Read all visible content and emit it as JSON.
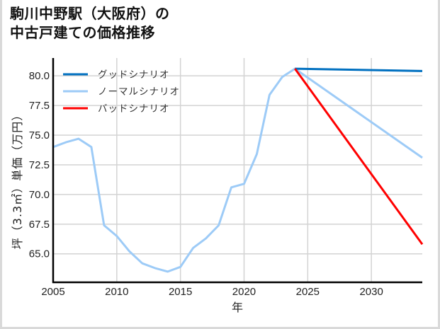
{
  "title": "駒川中野駅（大阪府）の\n中古戸建ての価格推移",
  "colors": {
    "good": "#0070c0",
    "normal": "#9dcbf7",
    "bad": "#ff0000",
    "grid": "#d3d3d3",
    "axis": "#000000",
    "frame": "#d9d9d9"
  },
  "chart_data": {
    "type": "line",
    "title": "駒川中野駅（大阪府）の中古戸建ての価格推移",
    "xlabel": "年",
    "ylabel": "坪（3.3㎡）単価（万円）",
    "xlim": [
      2005,
      2034
    ],
    "ylim": [
      62.6,
      81.5
    ],
    "x_ticks": [
      2005,
      2010,
      2015,
      2020,
      2025,
      2030
    ],
    "y_ticks": [
      65.0,
      67.5,
      70.0,
      72.5,
      75.0,
      77.5,
      80.0
    ],
    "y_tick_labels": [
      "65.0",
      "67.5",
      "70.0",
      "72.5",
      "75.0",
      "77.5",
      "80.0"
    ],
    "x_tick_labels": [
      "2005",
      "2010",
      "2015",
      "2020",
      "2025",
      "2030"
    ],
    "grid": true,
    "legend_position": "upper left",
    "series": [
      {
        "name": "グッドシナリオ",
        "color": "#0070c0",
        "x": [
          2024,
          2034
        ],
        "values": [
          80.6,
          80.4
        ]
      },
      {
        "name": "ノーマルシナリオ",
        "color": "#9dcbf7",
        "x": [
          2005,
          2006,
          2007,
          2008,
          2009,
          2010,
          2011,
          2012,
          2013,
          2014,
          2015,
          2016,
          2017,
          2018,
          2019,
          2020,
          2021,
          2022,
          2023,
          2024,
          2034
        ],
        "values": [
          74.0,
          74.4,
          74.7,
          74.0,
          67.4,
          66.5,
          65.2,
          64.2,
          63.8,
          63.5,
          63.9,
          65.5,
          66.3,
          67.4,
          70.6,
          70.9,
          73.4,
          78.4,
          79.9,
          80.6,
          73.1
        ]
      },
      {
        "name": "バッドシナリオ",
        "color": "#ff0000",
        "x": [
          2024,
          2034
        ],
        "values": [
          80.6,
          65.8
        ]
      }
    ]
  }
}
